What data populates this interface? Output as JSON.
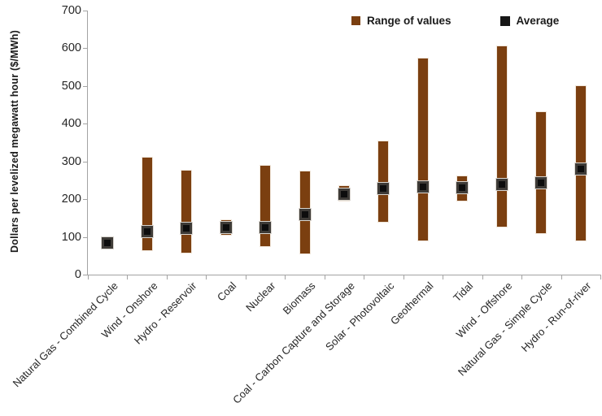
{
  "chart_data": {
    "type": "bar",
    "subtype": "range-with-average-marker",
    "title": "",
    "ylabel": "Dollars per levelized megawatt hour ($/MWh)",
    "xlabel": "",
    "ylim": [
      0,
      700
    ],
    "yticks": [
      0,
      100,
      200,
      300,
      400,
      500,
      600,
      700
    ],
    "grid": false,
    "legend_position": "top-inside",
    "legend": [
      {
        "label": "Range of values",
        "color": "#7b3f10",
        "marker": "square"
      },
      {
        "label": "Average",
        "color": "#161616",
        "marker": "square"
      }
    ],
    "categories": [
      "Natural Gas - Combined Cycle",
      "Wind - Onshore",
      "Hydro - Reservoir",
      "Coal",
      "Nuclear",
      "Biomass",
      "Coal - Carbon Capture and Storage",
      "Solar - Photovoltaic",
      "Geothermal",
      "Tidal",
      "Wind - Offshore",
      "Natural Gas - Simple Cycle",
      "Hydro - Run-of-river"
    ],
    "series": [
      {
        "name": "Range of values",
        "type": "range",
        "low": [
          75,
          65,
          58,
          105,
          75,
          57,
          195,
          140,
          90,
          195,
          127,
          110,
          90
        ],
        "high": [
          90,
          310,
          276,
          145,
          289,
          274,
          235,
          354,
          572,
          260,
          605,
          430,
          500
        ]
      },
      {
        "name": "Average",
        "type": "point",
        "values": [
          83,
          114,
          123,
          124,
          126,
          160,
          213,
          228,
          233,
          230,
          240,
          243,
          281
        ]
      }
    ]
  },
  "colors": {
    "range_bar": "#7b3f10",
    "range_bar_edge": "#f0e6da",
    "average_fill": "#0d0d0d",
    "average_border": "#3e3b37",
    "axis": "#a3a3a3",
    "text": "#1a1a1a"
  }
}
